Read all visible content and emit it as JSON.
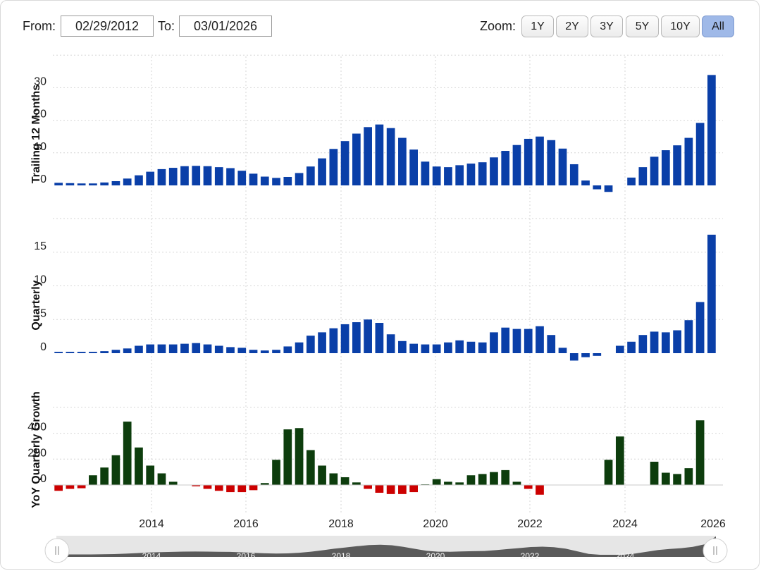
{
  "controls": {
    "from_label": "From:",
    "from_value": "02/29/2012",
    "to_label": "To:",
    "to_value": "03/01/2026",
    "zoom_label": "Zoom:",
    "zoom_options": [
      "1Y",
      "2Y",
      "3Y",
      "5Y",
      "10Y",
      "All"
    ],
    "zoom_selected": "All"
  },
  "colors": {
    "blue_bar": "#0a3fa8",
    "positive_bar": "#0d3d0d",
    "negative_bar": "#cc0000",
    "grid": "#d6d6d6",
    "navigator": "#5a5a5a"
  },
  "chart_data": {
    "type": "bar",
    "x_tick_labels": [
      "2014",
      "2016",
      "2018",
      "2020",
      "2022",
      "2024",
      "2026"
    ],
    "navigator_labels": [
      "2014",
      "2016",
      "2018",
      "2020",
      "2022",
      "2024"
    ],
    "panels": [
      {
        "ylabel": "Trailing 12 Months",
        "yticks": [
          0,
          10,
          20,
          30
        ],
        "ylim": [
          -3,
          36
        ],
        "values": [
          0.8,
          0.7,
          0.6,
          0.6,
          0.9,
          1.3,
          2.1,
          3.1,
          4.2,
          5.0,
          5.4,
          5.9,
          6.0,
          5.9,
          5.6,
          5.3,
          4.5,
          3.6,
          2.7,
          2.3,
          2.6,
          3.8,
          5.8,
          8.3,
          11.2,
          13.6,
          15.9,
          17.9,
          18.7,
          17.6,
          14.6,
          11.0,
          7.3,
          5.8,
          5.6,
          6.2,
          6.7,
          7.1,
          8.6,
          10.6,
          12.4,
          14.3,
          15.0,
          13.9,
          11.3,
          6.5,
          1.5,
          -1.2,
          -2.0,
          0.0,
          2.4,
          5.6,
          8.8,
          10.8,
          12.3,
          14.6,
          19.2,
          33.9
        ],
        "color_key": "blue_bar"
      },
      {
        "ylabel": "Quarterly",
        "yticks": [
          0,
          5,
          10,
          15
        ],
        "ylim": [
          -2,
          18.5
        ],
        "values": [
          0.2,
          0.2,
          0.2,
          0.2,
          0.3,
          0.5,
          0.7,
          1.1,
          1.3,
          1.3,
          1.3,
          1.4,
          1.5,
          1.3,
          1.1,
          0.9,
          0.8,
          0.5,
          0.4,
          0.5,
          1.0,
          1.6,
          2.6,
          3.1,
          3.7,
          4.3,
          4.6,
          5.0,
          4.5,
          2.8,
          1.8,
          1.4,
          1.3,
          1.3,
          1.6,
          1.9,
          1.7,
          1.6,
          3.1,
          3.8,
          3.6,
          3.6,
          4.0,
          2.7,
          0.8,
          -1.1,
          -0.6,
          -0.4,
          0.0,
          1.1,
          1.7,
          2.7,
          3.2,
          3.1,
          3.4,
          4.9,
          7.6,
          17.6
        ],
        "color_key": "blue_bar"
      },
      {
        "ylabel": "YoY Quarterly Growth",
        "yticks": [
          0,
          200,
          400
        ],
        "ylim": [
          -120,
          560
        ],
        "values": [
          -45,
          -30,
          -25,
          75,
          135,
          230,
          490,
          290,
          150,
          90,
          25,
          0,
          -10,
          -30,
          -45,
          -55,
          -55,
          -40,
          15,
          195,
          430,
          440,
          270,
          150,
          90,
          60,
          20,
          -30,
          -60,
          -70,
          -70,
          -55,
          5,
          45,
          25,
          20,
          75,
          85,
          100,
          115,
          25,
          -30,
          -75,
          0,
          0,
          0,
          0,
          0,
          195,
          375,
          0,
          0,
          180,
          95,
          85,
          130,
          500
        ]
      }
    ]
  }
}
